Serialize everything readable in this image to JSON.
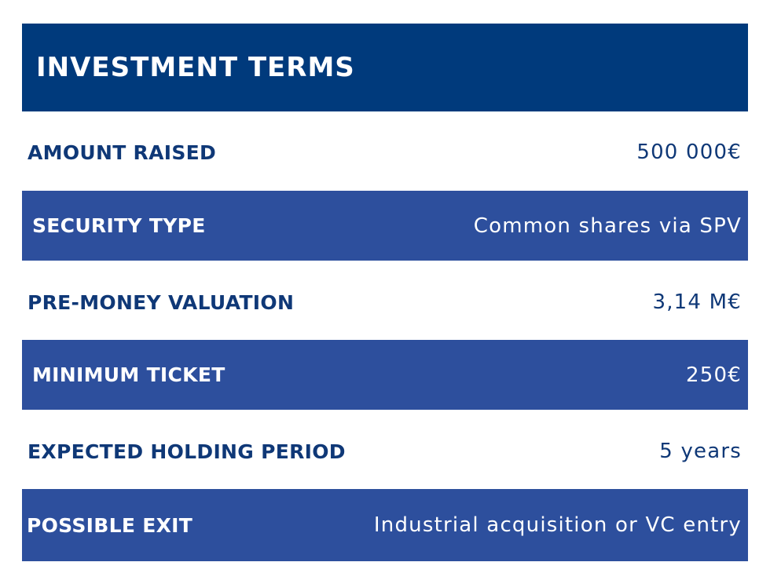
{
  "header": {
    "title": "INVESTMENT TERMS"
  },
  "rows": [
    {
      "label": "AMOUNT RAISED",
      "value": "500 000€"
    },
    {
      "label": "SECURITY TYPE",
      "value": "Common shares via SPV"
    },
    {
      "label": "PRE-MONEY VALUATION",
      "value": "3,14 M€"
    },
    {
      "label": "MINIMUM TICKET",
      "value": "250€"
    },
    {
      "label": "EXPECTED HOLDING PERIOD",
      "value": "5 years"
    },
    {
      "label": "POSSIBLE EXIT",
      "value": "Industrial acquisition or VC entry"
    }
  ],
  "colors": {
    "header_bg": "#003a7c",
    "dark_row_bg": "#2d4f9d",
    "light_row_text": "#0f3877",
    "dark_row_text": "#ffffff"
  }
}
